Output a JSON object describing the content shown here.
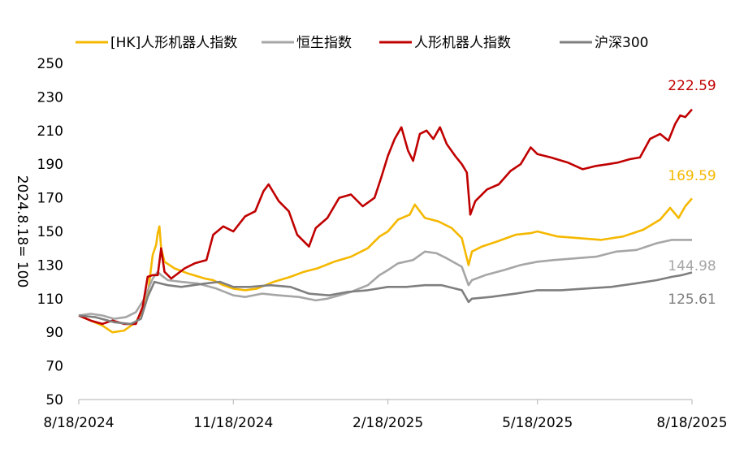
{
  "chart_data": {
    "type": "line",
    "ylabel": "2024.8.18= 100",
    "ylim": [
      50,
      250
    ],
    "yticks": [
      50,
      70,
      90,
      110,
      130,
      150,
      170,
      190,
      210,
      230,
      250
    ],
    "x_tick_labels": [
      "8/18/2024",
      "11/18/2024",
      "2/18/2025",
      "5/18/2025",
      "8/18/2025"
    ],
    "x_tick_dates": [
      "2024-08-18",
      "2024-11-18",
      "2025-02-18",
      "2025-05-18",
      "2025-08-18"
    ],
    "legend_position": "top",
    "series": [
      {
        "name": "[HK]人形机器人指数",
        "color": "#f5b800",
        "end_label": "169.59",
        "points": [
          [
            "2024-08-18",
            100
          ],
          [
            "2024-08-25",
            97
          ],
          [
            "2024-09-01",
            94
          ],
          [
            "2024-09-07",
            90
          ],
          [
            "2024-09-14",
            91
          ],
          [
            "2024-09-21",
            96
          ],
          [
            "2024-09-26",
            105
          ],
          [
            "2024-09-28",
            112
          ],
          [
            "2024-10-01",
            136
          ],
          [
            "2024-10-03",
            142
          ],
          [
            "2024-10-04",
            149
          ],
          [
            "2024-10-05",
            153
          ],
          [
            "2024-10-06",
            140
          ],
          [
            "2024-10-08",
            132
          ],
          [
            "2024-10-14",
            128
          ],
          [
            "2024-10-22",
            125
          ],
          [
            "2024-11-01",
            122
          ],
          [
            "2024-11-06",
            121
          ],
          [
            "2024-11-12",
            118
          ],
          [
            "2024-11-18",
            116
          ],
          [
            "2024-11-25",
            115
          ],
          [
            "2024-12-02",
            116
          ],
          [
            "2024-12-12",
            120
          ],
          [
            "2024-12-22",
            123
          ],
          [
            "2024-12-30",
            126
          ],
          [
            "2025-01-07",
            128
          ],
          [
            "2025-01-17",
            132
          ],
          [
            "2025-01-27",
            135
          ],
          [
            "2025-02-06",
            140
          ],
          [
            "2025-02-13",
            147
          ],
          [
            "2025-02-18",
            150
          ],
          [
            "2025-02-24",
            157
          ],
          [
            "2025-03-03",
            160
          ],
          [
            "2025-03-06",
            166
          ],
          [
            "2025-03-12",
            158
          ],
          [
            "2025-03-20",
            156
          ],
          [
            "2025-03-28",
            152
          ],
          [
            "2025-04-03",
            146
          ],
          [
            "2025-04-07",
            130
          ],
          [
            "2025-04-09",
            138
          ],
          [
            "2025-04-15",
            141
          ],
          [
            "2025-04-24",
            144
          ],
          [
            "2025-05-05",
            148
          ],
          [
            "2025-05-14",
            149
          ],
          [
            "2025-05-18",
            150
          ],
          [
            "2025-05-30",
            147
          ],
          [
            "2025-06-12",
            146
          ],
          [
            "2025-06-25",
            145
          ],
          [
            "2025-07-08",
            147
          ],
          [
            "2025-07-20",
            151
          ],
          [
            "2025-07-30",
            157
          ],
          [
            "2025-08-05",
            164
          ],
          [
            "2025-08-10",
            158
          ],
          [
            "2025-08-14",
            165
          ],
          [
            "2025-08-18",
            169.59
          ]
        ]
      },
      {
        "name": "恒生指数",
        "color": "#a6a6a6",
        "end_label": "144.98",
        "points": [
          [
            "2024-08-18",
            100
          ],
          [
            "2024-08-25",
            101
          ],
          [
            "2024-09-01",
            100
          ],
          [
            "2024-09-08",
            98
          ],
          [
            "2024-09-15",
            99
          ],
          [
            "2024-09-21",
            102
          ],
          [
            "2024-09-26",
            110
          ],
          [
            "2024-10-01",
            122
          ],
          [
            "2024-10-04",
            126
          ],
          [
            "2024-10-06",
            124
          ],
          [
            "2024-10-10",
            121
          ],
          [
            "2024-10-18",
            120
          ],
          [
            "2024-10-28",
            119
          ],
          [
            "2024-11-08",
            116
          ],
          [
            "2024-11-18",
            112
          ],
          [
            "2024-11-25",
            111
          ],
          [
            "2024-12-05",
            113
          ],
          [
            "2024-12-15",
            112
          ],
          [
            "2024-12-27",
            111
          ],
          [
            "2025-01-06",
            109
          ],
          [
            "2025-01-13",
            110
          ],
          [
            "2025-01-20",
            112
          ],
          [
            "2025-01-27",
            114
          ],
          [
            "2025-02-06",
            118
          ],
          [
            "2025-02-13",
            124
          ],
          [
            "2025-02-18",
            127
          ],
          [
            "2025-02-24",
            131
          ],
          [
            "2025-03-05",
            133
          ],
          [
            "2025-03-12",
            138
          ],
          [
            "2025-03-19",
            137
          ],
          [
            "2025-03-25",
            134
          ],
          [
            "2025-04-03",
            129
          ],
          [
            "2025-04-07",
            118
          ],
          [
            "2025-04-09",
            121
          ],
          [
            "2025-04-17",
            124
          ],
          [
            "2025-04-28",
            127
          ],
          [
            "2025-05-08",
            130
          ],
          [
            "2025-05-18",
            132
          ],
          [
            "2025-05-28",
            133
          ],
          [
            "2025-06-10",
            134
          ],
          [
            "2025-06-22",
            135
          ],
          [
            "2025-07-04",
            138
          ],
          [
            "2025-07-16",
            139
          ],
          [
            "2025-07-28",
            143
          ],
          [
            "2025-08-06",
            145
          ],
          [
            "2025-08-12",
            145
          ],
          [
            "2025-08-18",
            144.98
          ]
        ]
      },
      {
        "name": "人形机器人指数",
        "color": "#c00000",
        "end_label": "222.59",
        "points": [
          [
            "2024-08-18",
            100
          ],
          [
            "2024-08-25",
            97
          ],
          [
            "2024-09-01",
            95
          ],
          [
            "2024-09-07",
            97
          ],
          [
            "2024-09-14",
            95
          ],
          [
            "2024-09-21",
            95
          ],
          [
            "2024-09-25",
            105
          ],
          [
            "2024-09-28",
            123
          ],
          [
            "2024-10-01",
            124
          ],
          [
            "2024-10-04",
            124
          ],
          [
            "2024-10-06",
            140
          ],
          [
            "2024-10-08",
            126
          ],
          [
            "2024-10-12",
            122
          ],
          [
            "2024-10-20",
            128
          ],
          [
            "2024-10-26",
            131
          ],
          [
            "2024-11-02",
            133
          ],
          [
            "2024-11-06",
            148
          ],
          [
            "2024-11-12",
            153
          ],
          [
            "2024-11-18",
            150
          ],
          [
            "2024-11-25",
            159
          ],
          [
            "2024-12-01",
            162
          ],
          [
            "2024-12-06",
            174
          ],
          [
            "2024-12-09",
            178
          ],
          [
            "2024-12-15",
            168
          ],
          [
            "2024-12-21",
            162
          ],
          [
            "2024-12-26",
            148
          ],
          [
            "2025-01-02",
            141
          ],
          [
            "2025-01-06",
            152
          ],
          [
            "2025-01-13",
            158
          ],
          [
            "2025-01-20",
            170
          ],
          [
            "2025-01-27",
            172
          ],
          [
            "2025-02-03",
            165
          ],
          [
            "2025-02-10",
            170
          ],
          [
            "2025-02-14",
            182
          ],
          [
            "2025-02-18",
            195
          ],
          [
            "2025-02-22",
            205
          ],
          [
            "2025-02-26",
            212
          ],
          [
            "2025-03-02",
            198
          ],
          [
            "2025-03-05",
            192
          ],
          [
            "2025-03-09",
            208
          ],
          [
            "2025-03-13",
            210
          ],
          [
            "2025-03-17",
            205
          ],
          [
            "2025-03-21",
            212
          ],
          [
            "2025-03-25",
            202
          ],
          [
            "2025-03-30",
            195
          ],
          [
            "2025-04-03",
            190
          ],
          [
            "2025-04-06",
            185
          ],
          [
            "2025-04-08",
            160
          ],
          [
            "2025-04-11",
            168
          ],
          [
            "2025-04-18",
            175
          ],
          [
            "2025-04-25",
            178
          ],
          [
            "2025-05-02",
            186
          ],
          [
            "2025-05-08",
            190
          ],
          [
            "2025-05-14",
            200
          ],
          [
            "2025-05-18",
            196
          ],
          [
            "2025-05-26",
            194
          ],
          [
            "2025-06-05",
            191
          ],
          [
            "2025-06-14",
            187
          ],
          [
            "2025-06-22",
            189
          ],
          [
            "2025-06-29",
            190
          ],
          [
            "2025-07-05",
            191
          ],
          [
            "2025-07-12",
            193
          ],
          [
            "2025-07-18",
            194
          ],
          [
            "2025-07-24",
            205
          ],
          [
            "2025-07-30",
            208
          ],
          [
            "2025-08-04",
            204
          ],
          [
            "2025-08-08",
            214
          ],
          [
            "2025-08-11",
            219
          ],
          [
            "2025-08-14",
            218
          ],
          [
            "2025-08-18",
            222.59
          ]
        ]
      },
      {
        "name": "沪深300",
        "color": "#7f7f7f",
        "end_label": "125.61",
        "points": [
          [
            "2024-08-18",
            100
          ],
          [
            "2024-08-28",
            99
          ],
          [
            "2024-09-08",
            96
          ],
          [
            "2024-09-18",
            95
          ],
          [
            "2024-09-24",
            98
          ],
          [
            "2024-09-28",
            111
          ],
          [
            "2024-10-02",
            120
          ],
          [
            "2024-10-06",
            119
          ],
          [
            "2024-10-10",
            118
          ],
          [
            "2024-10-18",
            117
          ],
          [
            "2024-11-01",
            119
          ],
          [
            "2024-11-10",
            120
          ],
          [
            "2024-11-18",
            117
          ],
          [
            "2024-11-28",
            117
          ],
          [
            "2024-12-10",
            118
          ],
          [
            "2024-12-22",
            117
          ],
          [
            "2025-01-02",
            113
          ],
          [
            "2025-01-14",
            112
          ],
          [
            "2025-01-25",
            114
          ],
          [
            "2025-02-06",
            115
          ],
          [
            "2025-02-18",
            117
          ],
          [
            "2025-03-01",
            117
          ],
          [
            "2025-03-12",
            118
          ],
          [
            "2025-03-22",
            118
          ],
          [
            "2025-04-03",
            115
          ],
          [
            "2025-04-07",
            108
          ],
          [
            "2025-04-09",
            110
          ],
          [
            "2025-04-20",
            111
          ],
          [
            "2025-05-05",
            113
          ],
          [
            "2025-05-18",
            115
          ],
          [
            "2025-06-01",
            115
          ],
          [
            "2025-06-15",
            116
          ],
          [
            "2025-07-01",
            117
          ],
          [
            "2025-07-15",
            119
          ],
          [
            "2025-07-28",
            121
          ],
          [
            "2025-08-06",
            123
          ],
          [
            "2025-08-12",
            124
          ],
          [
            "2025-08-18",
            125.61
          ]
        ]
      }
    ]
  }
}
